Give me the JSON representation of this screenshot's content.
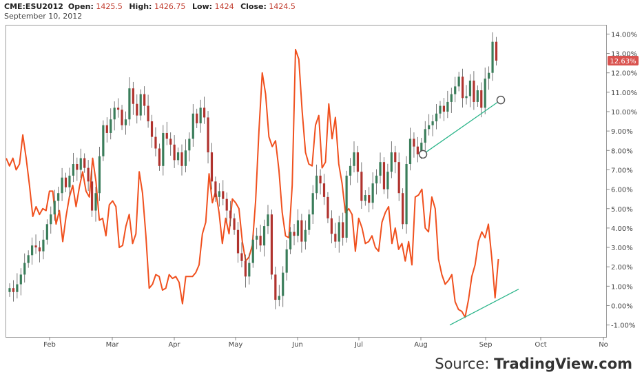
{
  "header": {
    "symbol": "CME:ESU2012",
    "open_label": "Open:",
    "open": "1425.5",
    "high_label": "High:",
    "high": "1426.75",
    "low_label": "Low:",
    "low": "1424",
    "close_label": "Close:",
    "close": "1424.5",
    "date": "September 10, 2012"
  },
  "source": {
    "prefix": "Source:",
    "brand": "TradingView.com"
  },
  "colors": {
    "up": "#3a7d5a",
    "down": "#b0332e",
    "line": "#f0501e",
    "trend": "#2bb58a",
    "badge": "#d9534f"
  },
  "chart_data": {
    "type": "line",
    "x_ticks": [
      "Feb",
      "Mar",
      "Apr",
      "May",
      "Jun",
      "Jul",
      "Aug",
      "Sep",
      "Oct",
      "No"
    ],
    "y_axis": {
      "ticks": [
        "14.00%",
        "13.00%",
        "12.00%",
        "11.00%",
        "10.00%",
        "9.00%",
        "8.00%",
        "7.00%",
        "6.00%",
        "5.00%",
        "4.00%",
        "3.00%",
        "2.00%",
        "1.00%",
        "0.00%",
        "-1.00%"
      ],
      "min": -1.5,
      "max": 14.5
    },
    "price_badge": "12.63%",
    "indicator_series": {
      "color": "#f0501e",
      "values": [
        7.6,
        7.2,
        7.6,
        7.0,
        7.3,
        8.8,
        7.6,
        6.2,
        4.6,
        5.1,
        4.7,
        5.0,
        4.9,
        5.9,
        5.9,
        4.2,
        4.9,
        3.3,
        4.6,
        5.6,
        6.2,
        5.1,
        6.1,
        6.9,
        5.9,
        5.6,
        7.6,
        6.4,
        4.4,
        4.5,
        3.6,
        5.2,
        5.4,
        5.1,
        3.0,
        3.1,
        4.1,
        4.7,
        3.2,
        3.7,
        6.9,
        5.8,
        3.6,
        0.9,
        1.1,
        1.6,
        1.5,
        0.8,
        0.9,
        1.6,
        1.4,
        1.5,
        1.2,
        0.1,
        1.5,
        1.5,
        1.5,
        1.7,
        2.1,
        3.7,
        4.3,
        6.8,
        5.3,
        5.9,
        4.8,
        3.2,
        4.5,
        3.7,
        5.5,
        5.3,
        5.0,
        3.3,
        2.3,
        2.5,
        3.1,
        5.4,
        9.0,
        12.0,
        10.9,
        8.7,
        8.2,
        8.5,
        7.0,
        4.8,
        3.6,
        3.5,
        6.2,
        13.2,
        12.7,
        10.0,
        7.9,
        7.3,
        7.2,
        9.3,
        9.8,
        7.1,
        7.4,
        10.4,
        8.6,
        9.7,
        7.3,
        6.3,
        4.8,
        5.0,
        4.7,
        2.8,
        4.5,
        4.0,
        3.2,
        3.3,
        3.6,
        3.0,
        2.8,
        4.3,
        4.8,
        5.1,
        3.2,
        4.0,
        2.9,
        3.2,
        2.3,
        3.3,
        2.1,
        5.6,
        5.7,
        6.0,
        4.0,
        3.8,
        5.6,
        5.0,
        2.4,
        1.6,
        1.1,
        1.3,
        1.6,
        0.2,
        -0.2,
        -0.3,
        -0.6,
        0.3,
        1.5,
        2.1,
        3.3,
        3.8,
        3.5,
        4.2,
        2.5,
        0.4,
        2.4
      ]
    },
    "price_series": {
      "closes": [
        0.9,
        0.7,
        1.1,
        1.6,
        2.2,
        2.6,
        3.1,
        3.0,
        2.8,
        3.4,
        4.2,
        4.7,
        5.4,
        5.8,
        6.6,
        6.1,
        6.7,
        7.3,
        7.0,
        7.6,
        7.1,
        6.4,
        4.9,
        5.8,
        7.7,
        9.3,
        8.9,
        9.6,
        10.2,
        10.1,
        9.3,
        9.6,
        11.2,
        10.4,
        9.8,
        10.9,
        10.3,
        9.5,
        8.7,
        8.1,
        7.2,
        8.9,
        8.6,
        8.3,
        7.5,
        7.9,
        7.2,
        8.0,
        8.6,
        9.9,
        9.4,
        10.2,
        9.7,
        7.9,
        6.4,
        5.6,
        5.9,
        5.5,
        4.9,
        4.5,
        3.9,
        2.7,
        2.3,
        1.5,
        2.2,
        3.4,
        3.6,
        3.1,
        4.1,
        4.7,
        1.6,
        0.3,
        0.5,
        1.7,
        2.9,
        3.8,
        3.6,
        4.4,
        3.3,
        3.9,
        4.7,
        5.8,
        6.7,
        6.3,
        5.6,
        4.5,
        3.7,
        3.3,
        4.3,
        3.5,
        6.7,
        7.2,
        7.9,
        6.9,
        5.4,
        5.7,
        5.3,
        6.3,
        6.7,
        7.4,
        6.0,
        6.9,
        7.9,
        7.4,
        5.8,
        4.2,
        7.3,
        8.6,
        8.2,
        7.8,
        8.4,
        9.1,
        9.3,
        9.5,
        9.9,
        10.3,
        10.0,
        10.5,
        10.9,
        11.3,
        11.8,
        10.7,
        10.8,
        11.6,
        10.5,
        11.1,
        10.2,
        11.7,
        12.0,
        13.6,
        12.63
      ],
      "up_color": "#3a7d5a",
      "down_color": "#b0332e"
    },
    "trendlines": [
      {
        "from": [
          120.5,
          7.8
        ],
        "to": [
          150.5,
          10.6
        ],
        "marker_start": true,
        "marker_end": true
      },
      {
        "from": [
          128,
          -1.0
        ],
        "to": [
          155,
          0.85
        ],
        "marker_start": false,
        "marker_end": false
      }
    ]
  }
}
